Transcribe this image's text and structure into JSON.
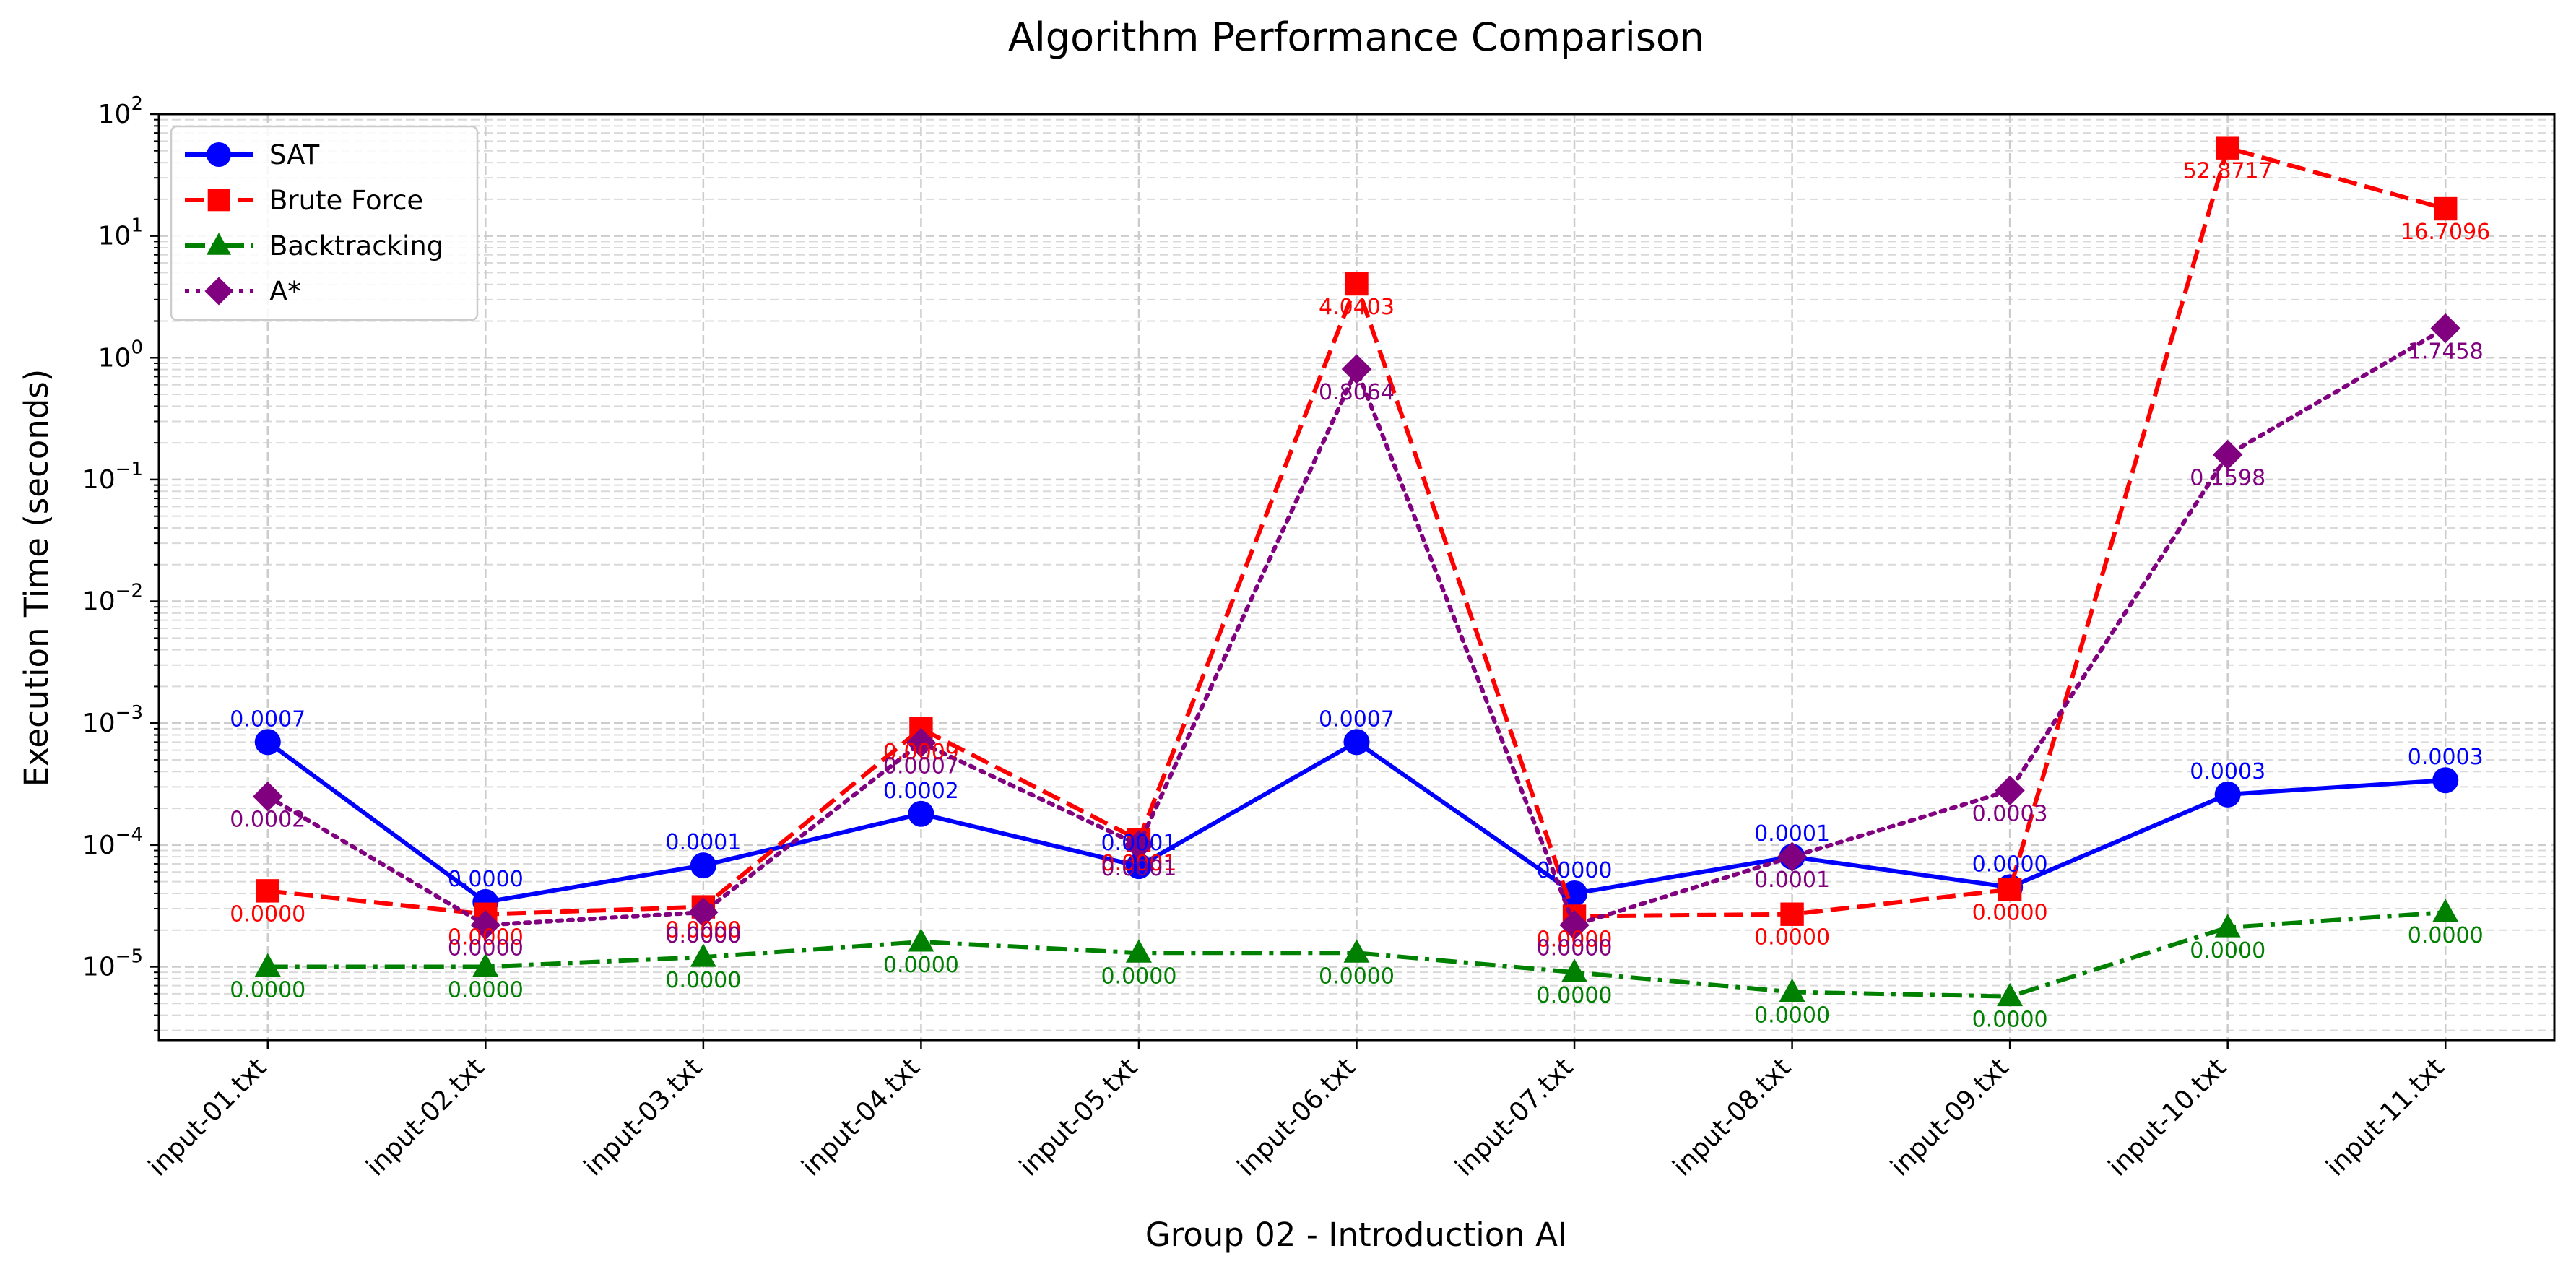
{
  "chart_data": {
    "type": "line",
    "title": "Algorithm Performance Comparison",
    "xlabel": "Group 02 - Introduction AI",
    "ylabel": "Execution Time (seconds)",
    "yscale": "log",
    "ylim": [
      2.5e-06,
      100
    ],
    "grid": true,
    "legend_position": "top-left",
    "categories": [
      "input-01.txt",
      "input-02.txt",
      "input-03.txt",
      "input-04.txt",
      "input-05.txt",
      "input-06.txt",
      "input-07.txt",
      "input-08.txt",
      "input-09.txt",
      "input-10.txt",
      "input-11.txt"
    ],
    "y_ticks": [
      {
        "value": 1e-05,
        "base": "10",
        "exp": "−5"
      },
      {
        "value": 0.0001,
        "base": "10",
        "exp": "−4"
      },
      {
        "value": 0.001,
        "base": "10",
        "exp": "−3"
      },
      {
        "value": 0.01,
        "base": "10",
        "exp": "−2"
      },
      {
        "value": 0.1,
        "base": "10",
        "exp": "−1"
      },
      {
        "value": 1,
        "base": "10",
        "exp": "0"
      },
      {
        "value": 10,
        "base": "10",
        "exp": "1"
      },
      {
        "value": 100,
        "base": "10",
        "exp": "2"
      }
    ],
    "series": [
      {
        "name": "SAT",
        "color": "#0000ff",
        "marker": "circle",
        "line_style": "solid",
        "values": [
          0.0007,
          3.4e-05,
          6.8e-05,
          0.00018,
          6.7e-05,
          0.0007,
          4e-05,
          8e-05,
          4.5e-05,
          0.00026,
          0.00034
        ],
        "labels": [
          "0.0007",
          "0.0000",
          "0.0001",
          "0.0002",
          "0.0001",
          "0.0007",
          "0.0000",
          "0.0001",
          "0.0000",
          "0.0003",
          "0.0003"
        ]
      },
      {
        "name": "Brute Force",
        "color": "#ff0000",
        "marker": "square",
        "line_style": "dashed",
        "values": [
          4.2e-05,
          2.7e-05,
          3.1e-05,
          0.0009,
          0.00011,
          4.0403,
          2.6e-05,
          2.7e-05,
          4.3e-05,
          52.8717,
          16.7096
        ],
        "labels": [
          "0.0000",
          "0.0000",
          "0.0000",
          "0.0009",
          "0.0001",
          "4.0403",
          "0.0000",
          "0.0000",
          "0.0000",
          "52.8717",
          "16.7096"
        ]
      },
      {
        "name": "Backtracking",
        "color": "#008000",
        "marker": "triangle",
        "line_style": "dashdot",
        "values": [
          1e-05,
          1e-05,
          1.2e-05,
          1.6e-05,
          1.3e-05,
          1.3e-05,
          9e-06,
          6.2e-06,
          5.7e-06,
          2.1e-05,
          2.8e-05
        ],
        "labels": [
          "0.0000",
          "0.0000",
          "0.0000",
          "0.0000",
          "0.0000",
          "0.0000",
          "0.0000",
          "0.0000",
          "0.0000",
          "0.0000",
          "0.0000"
        ]
      },
      {
        "name": "A*",
        "color": "#800080",
        "marker": "diamond",
        "line_style": "dotted",
        "values": [
          0.00025,
          2.2e-05,
          2.8e-05,
          0.00069,
          0.0001,
          0.8064,
          2.2e-05,
          8e-05,
          0.00028,
          0.1598,
          1.7458
        ],
        "labels": [
          "0.0002",
          "0.0000",
          "0.0000",
          "0.0007",
          "0.0001",
          "0.8064",
          "0.0000",
          "0.0001",
          "0.0003",
          "0.1598",
          "1.7458"
        ]
      }
    ]
  }
}
